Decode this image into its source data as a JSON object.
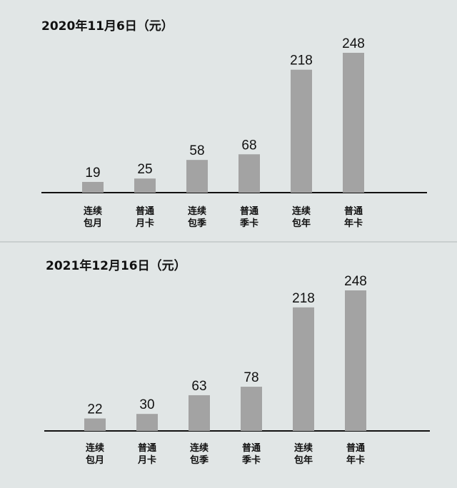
{
  "chart_data": [
    {
      "type": "bar",
      "title": "2020年11月6日（元）",
      "categories": [
        "连续\n包月",
        "普通\n月卡",
        "连续\n包季",
        "普通\n季卡",
        "连续\n包年",
        "普通\n年卡"
      ],
      "values": [
        19,
        25,
        58,
        68,
        218,
        248
      ],
      "ylim": [
        0,
        248
      ],
      "grid": false,
      "colors": {
        "bar": "#a3a3a3",
        "axis": "#111111"
      }
    },
    {
      "type": "bar",
      "title": "2021年12月16日（元）",
      "categories": [
        "连续\n包月",
        "普通\n月卡",
        "连续\n包季",
        "普通\n季卡",
        "连续\n包年",
        "普通\n年卡"
      ],
      "values": [
        22,
        30,
        63,
        78,
        218,
        248
      ],
      "ylim": [
        0,
        248
      ],
      "grid": false,
      "colors": {
        "bar": "#a3a3a3",
        "axis": "#111111"
      }
    }
  ]
}
